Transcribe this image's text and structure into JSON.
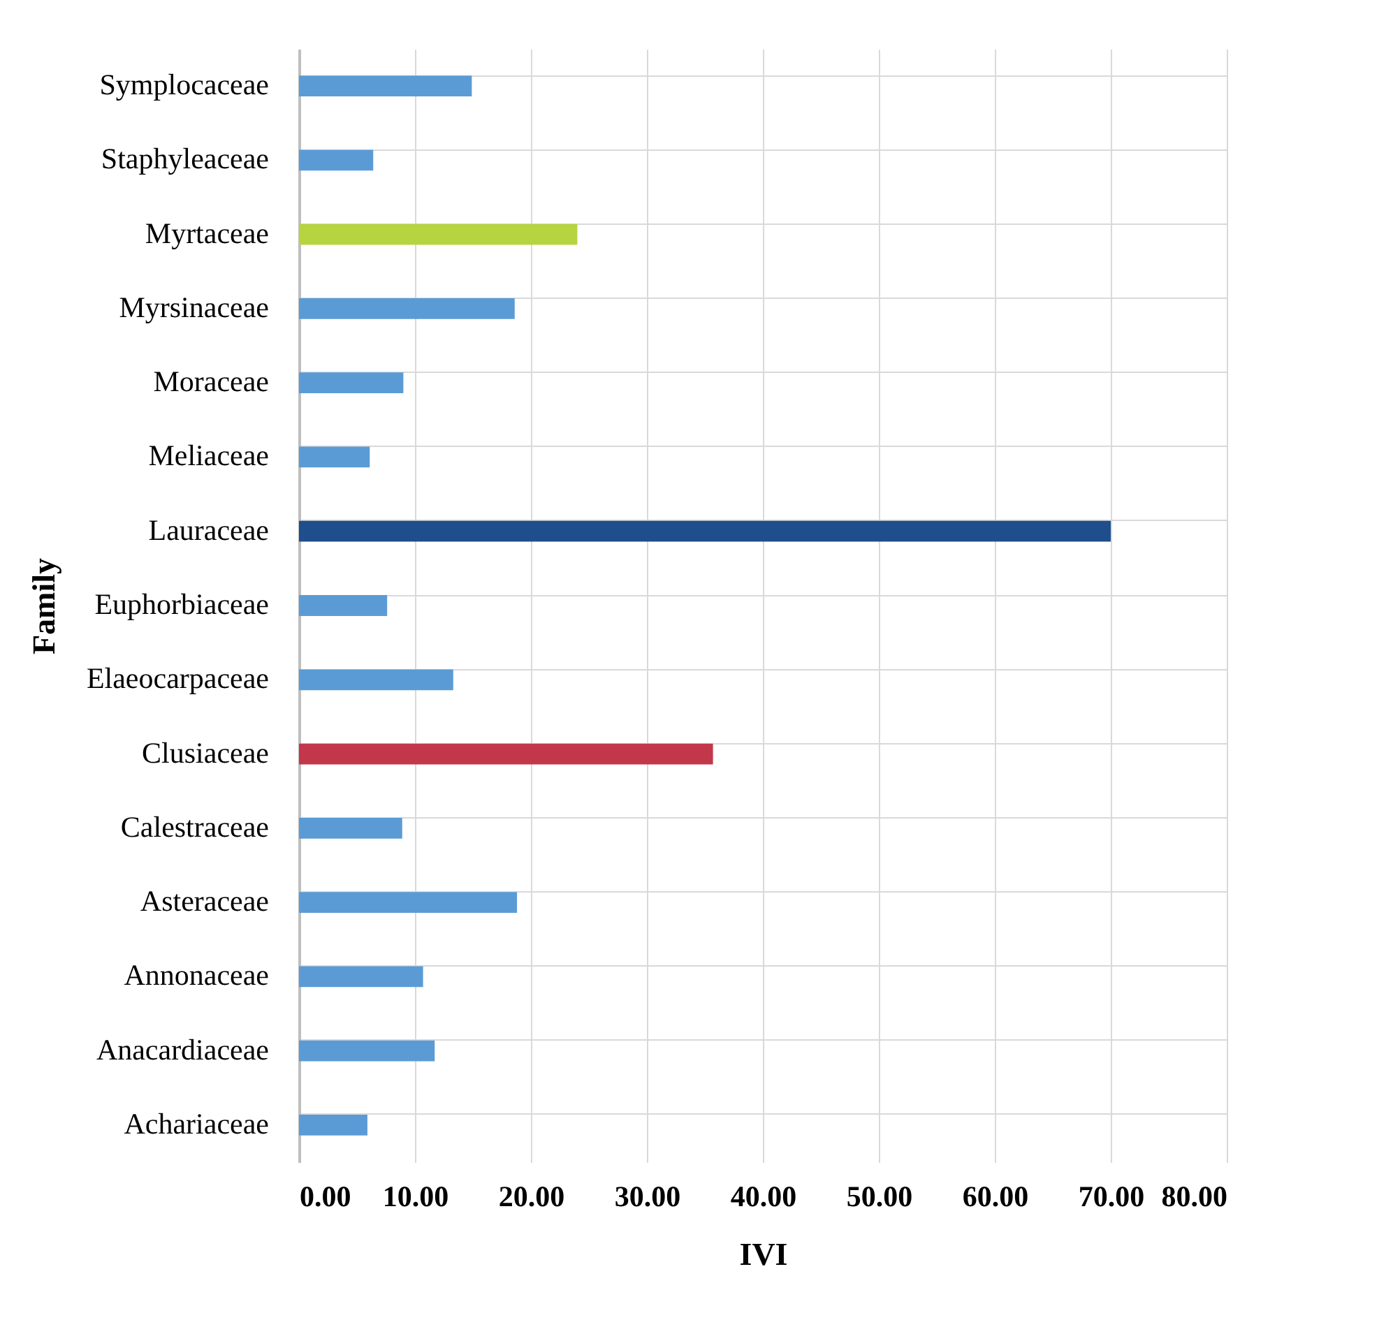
{
  "chart_data": {
    "type": "bar",
    "orientation": "horizontal",
    "xlabel": "IVI",
    "ylabel": "Family",
    "categories": [
      "Symplocaceae",
      "Staphyleaceae",
      "Myrtaceae",
      "Myrsinaceae",
      "Moraceae",
      "Meliaceae",
      "Lauraceae",
      "Euphorbiaceae",
      "Elaeocarpaceae",
      "Clusiaceae",
      "Calestraceae",
      "Asteraceae",
      "Annonaceae",
      "Anacardiaceae",
      "Achariaceae"
    ],
    "values": [
      14.9,
      6.4,
      24.0,
      18.6,
      9.0,
      6.1,
      70.0,
      7.6,
      13.3,
      35.7,
      8.9,
      18.8,
      10.7,
      11.7,
      5.9
    ],
    "colors": [
      "#5b9bd5",
      "#5b9bd5",
      "#b5d43f",
      "#5b9bd5",
      "#5b9bd5",
      "#5b9bd5",
      "#1f4e8c",
      "#5b9bd5",
      "#5b9bd5",
      "#c3374b",
      "#5b9bd5",
      "#5b9bd5",
      "#5b9bd5",
      "#5b9bd5",
      "#5b9bd5"
    ],
    "xlim": [
      0,
      80
    ],
    "xticks": [
      {
        "value": 0,
        "label": "0.00"
      },
      {
        "value": 10,
        "label": "10.00"
      },
      {
        "value": 20,
        "label": "20.00"
      },
      {
        "value": 30,
        "label": "30.00"
      },
      {
        "value": 40,
        "label": "40.00"
      },
      {
        "value": 50,
        "label": "50.00"
      },
      {
        "value": 60,
        "label": "60.00"
      },
      {
        "value": 70,
        "label": "70.00"
      },
      {
        "value": 80,
        "label": "80.00"
      }
    ],
    "grid": true,
    "legend": false
  }
}
